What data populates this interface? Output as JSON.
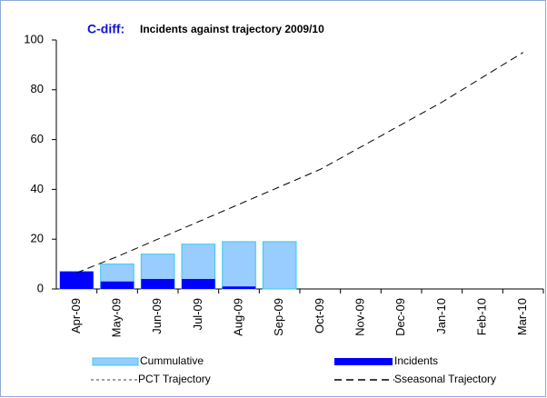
{
  "chart_data": {
    "type": "bar",
    "title": "C-diff:",
    "subtitle": "Incidents against trajectory 2009/10",
    "categories": [
      "Apr-09",
      "May-09",
      "Jun-09",
      "Jul-09",
      "Aug-09",
      "Sep-09",
      "Oct-09",
      "Nov-09",
      "Dec-09",
      "Jan-10",
      "Feb-10",
      "Mar-10"
    ],
    "series": [
      {
        "name": "Cummulative",
        "type": "bar",
        "color": "#99ccff",
        "values": [
          7,
          10,
          14,
          18,
          19,
          19,
          null,
          null,
          null,
          null,
          null,
          null
        ]
      },
      {
        "name": "Incidents",
        "type": "bar",
        "color": "#0000ff",
        "values": [
          7,
          3,
          4,
          4,
          1,
          0,
          null,
          null,
          null,
          null,
          null,
          null
        ]
      },
      {
        "name": "PCT Trajectory",
        "type": "line",
        "style": "dotted",
        "color": "#808080",
        "values": [
          null,
          null,
          null,
          null,
          null,
          null,
          null,
          null,
          null,
          null,
          null,
          null
        ]
      },
      {
        "name": "Sseasonal Trajectory",
        "type": "line",
        "style": "dashed",
        "color": "#000000",
        "values": [
          6.5,
          13,
          20,
          27,
          34,
          41,
          48,
          57,
          66,
          75,
          85,
          95
        ]
      }
    ],
    "ylim": [
      0,
      100
    ],
    "yticks": [
      0,
      20,
      40,
      60,
      80,
      100
    ],
    "grid": false
  }
}
